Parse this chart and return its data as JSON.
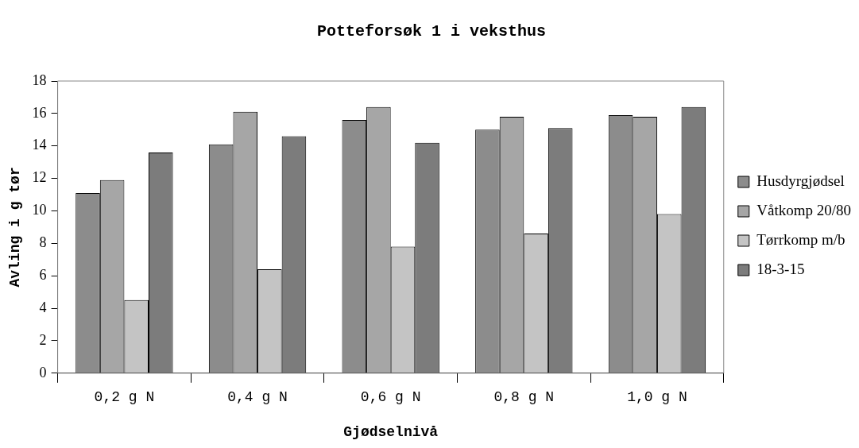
{
  "chart_data": {
    "type": "bar",
    "title": "Potteforsøk 1 i veksthus",
    "xlabel": "Gjødselnivå",
    "ylabel": "Avling i g tør",
    "categories": [
      "0,2 g N",
      "0,4 g N",
      "0,6 g N",
      "0,8 g N",
      "1,0 g N"
    ],
    "series": [
      {
        "name": "Husdyrgjødsel",
        "color": "#8c8c8c",
        "values": [
          11.1,
          14.1,
          15.6,
          15.0,
          15.9
        ]
      },
      {
        "name": "Våtkomp 20/80",
        "color": "#a6a6a6",
        "values": [
          11.9,
          16.1,
          16.4,
          15.8,
          15.8
        ]
      },
      {
        "name": "Tørrkomp m/b",
        "color": "#c4c4c4",
        "values": [
          4.5,
          6.4,
          7.8,
          8.6,
          9.8
        ]
      },
      {
        "name": "18-3-15",
        "color": "#7c7c7c",
        "values": [
          13.6,
          14.6,
          14.2,
          15.1,
          16.4
        ]
      }
    ],
    "ylim": [
      0,
      18
    ],
    "yticks": [
      0,
      2,
      4,
      6,
      8,
      10,
      12,
      14,
      16,
      18
    ],
    "grid": false,
    "legend": "right"
  }
}
